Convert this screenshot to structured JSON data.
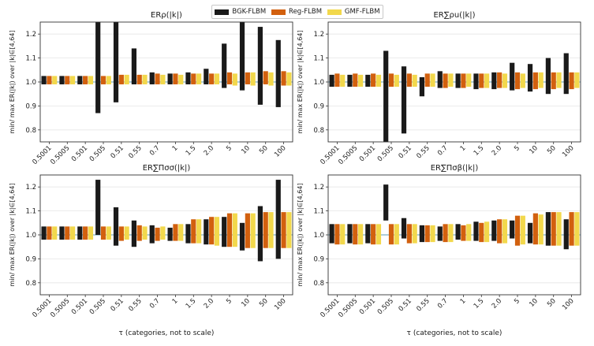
{
  "legend": {
    "bgk": {
      "label": "BGK-FLBM",
      "color": "#1a1a1a"
    },
    "reg": {
      "label": "Reg-FLBM",
      "color": "#d2600e"
    },
    "gmf": {
      "label": "GMF-FLBM",
      "color": "#f2d84c"
    }
  },
  "reference_line_color": "#5b9bb5",
  "chart_data": [
    {
      "type": "bar",
      "title": "ERρ(|k|)",
      "ylabel": "min/ max ER(|k|) over |k|∈[4,64]",
      "xlabel": "τ (categories, not to scale)",
      "categories": [
        "0.5001",
        "0.5005",
        "0.501",
        "0.505",
        "0.51",
        "0.55",
        "0.7",
        "1",
        "1.5",
        "2.0",
        "5",
        "10",
        "50",
        "100"
      ],
      "ylim": [
        0.75,
        1.25
      ],
      "yticks": [
        0.8,
        0.9,
        1.0,
        1.1,
        1.2
      ],
      "reference": 1.0,
      "series": [
        {
          "name": "BGK-FLBM",
          "min": [
            0.99,
            0.99,
            0.99,
            0.87,
            0.915,
            0.99,
            0.99,
            0.99,
            0.99,
            0.99,
            0.975,
            0.965,
            0.905,
            0.895
          ],
          "max": [
            1.025,
            1.025,
            1.025,
            1.25,
            1.25,
            1.14,
            1.04,
            1.035,
            1.04,
            1.055,
            1.16,
            1.25,
            1.23,
            1.175
          ]
        },
        {
          "name": "Reg-FLBM",
          "min": [
            0.99,
            0.99,
            0.99,
            0.99,
            0.99,
            0.99,
            0.99,
            0.99,
            0.99,
            0.99,
            0.99,
            0.99,
            0.99,
            0.985
          ],
          "max": [
            1.025,
            1.025,
            1.025,
            1.025,
            1.03,
            1.03,
            1.035,
            1.035,
            1.035,
            1.035,
            1.04,
            1.04,
            1.045,
            1.045
          ]
        },
        {
          "name": "GMF-FLBM",
          "min": [
            0.99,
            0.99,
            0.99,
            0.99,
            0.99,
            0.99,
            0.99,
            0.99,
            0.99,
            0.99,
            0.985,
            0.985,
            0.985,
            0.985
          ],
          "max": [
            1.025,
            1.025,
            1.025,
            1.025,
            1.03,
            1.03,
            1.03,
            1.03,
            1.035,
            1.035,
            1.035,
            1.04,
            1.04,
            1.04
          ]
        }
      ]
    },
    {
      "type": "bar",
      "title": "ER∑ρu(|k|)",
      "ylabel": "min/ max ER(|k|) over |k|∈[4,64]",
      "xlabel": "τ (categories, not to scale)",
      "categories": [
        "0.5001",
        "0.5005",
        "0.501",
        "0.505",
        "0.51",
        "0.55",
        "0.7",
        "1",
        "1.5",
        "2.0",
        "5",
        "10",
        "50",
        "100"
      ],
      "ylim": [
        0.75,
        1.25
      ],
      "yticks": [
        0.8,
        0.9,
        1.0,
        1.1,
        1.2
      ],
      "reference": 1.0,
      "series": [
        {
          "name": "BGK-FLBM",
          "min": [
            0.98,
            0.98,
            0.98,
            0.75,
            0.785,
            0.94,
            0.975,
            0.975,
            0.97,
            0.97,
            0.965,
            0.96,
            0.95,
            0.95
          ],
          "max": [
            1.03,
            1.03,
            1.03,
            1.13,
            1.065,
            1.02,
            1.045,
            1.035,
            1.035,
            1.04,
            1.08,
            1.075,
            1.1,
            1.12
          ]
        },
        {
          "name": "Reg-FLBM",
          "min": [
            0.98,
            0.98,
            0.98,
            0.98,
            0.98,
            0.98,
            0.975,
            0.975,
            0.975,
            0.975,
            0.97,
            0.97,
            0.97,
            0.97
          ],
          "max": [
            1.035,
            1.035,
            1.035,
            1.035,
            1.035,
            1.035,
            1.035,
            1.035,
            1.035,
            1.04,
            1.04,
            1.04,
            1.04,
            1.04
          ]
        },
        {
          "name": "GMF-FLBM",
          "min": [
            0.98,
            0.98,
            0.98,
            0.98,
            0.98,
            0.98,
            0.98,
            0.98,
            0.975,
            0.975,
            0.975,
            0.975,
            0.975,
            0.975
          ],
          "max": [
            1.03,
            1.03,
            1.03,
            1.03,
            1.03,
            1.035,
            1.035,
            1.035,
            1.035,
            1.035,
            1.035,
            1.04,
            1.04,
            1.04
          ]
        }
      ]
    },
    {
      "type": "bar",
      "title": "ER∑Πσσ(|k|)",
      "ylabel": "min/ max ER(|k|) over |k|∈[4,64]",
      "xlabel": "τ (categories, not to scale)",
      "categories": [
        "0.5001",
        "0.5005",
        "0.501",
        "0.505",
        "0.51",
        "0.55",
        "0.7",
        "1",
        "1.5",
        "2.0",
        "5",
        "10",
        "50",
        "100"
      ],
      "ylim": [
        0.75,
        1.25
      ],
      "yticks": [
        0.8,
        0.9,
        1.0,
        1.1,
        1.2
      ],
      "reference": 1.0,
      "series": [
        {
          "name": "BGK-FLBM",
          "min": [
            0.98,
            0.98,
            0.98,
            1.0,
            0.955,
            0.95,
            0.965,
            0.975,
            0.965,
            0.96,
            0.95,
            0.935,
            0.89,
            0.9
          ],
          "max": [
            1.035,
            1.035,
            1.035,
            1.23,
            1.115,
            1.06,
            1.04,
            1.03,
            1.045,
            1.065,
            1.075,
            1.05,
            1.12,
            1.23
          ]
        },
        {
          "name": "Reg-FLBM",
          "min": [
            0.98,
            0.98,
            0.98,
            0.98,
            0.975,
            0.975,
            0.975,
            0.975,
            0.965,
            0.96,
            0.95,
            0.945,
            0.945,
            0.945
          ],
          "max": [
            1.035,
            1.035,
            1.035,
            1.035,
            1.035,
            1.04,
            1.03,
            1.045,
            1.065,
            1.075,
            1.09,
            1.09,
            1.095,
            1.095
          ]
        },
        {
          "name": "GMF-FLBM",
          "min": [
            0.98,
            0.98,
            0.98,
            0.98,
            0.98,
            0.98,
            0.98,
            0.975,
            0.965,
            0.955,
            0.95,
            0.945,
            0.945,
            0.945
          ],
          "max": [
            1.035,
            1.035,
            1.035,
            1.035,
            1.035,
            1.035,
            1.035,
            1.045,
            1.065,
            1.075,
            1.09,
            1.09,
            1.095,
            1.095
          ]
        }
      ]
    },
    {
      "type": "bar",
      "title": "ER∑Πσβ(|k|)",
      "ylabel": "min/ max ER(|k|) over |k|∈[4,64]",
      "xlabel": "τ (categories, not to scale)",
      "categories": [
        "0.5001",
        "0.5005",
        "0.501",
        "0.505",
        "0.51",
        "0.55",
        "0.7",
        "1",
        "1.5",
        "2.0",
        "5",
        "10",
        "50",
        "100"
      ],
      "ylim": [
        0.75,
        1.25
      ],
      "yticks": [
        0.8,
        0.9,
        1.0,
        1.1,
        1.2
      ],
      "reference": 1.0,
      "series": [
        {
          "name": "BGK-FLBM",
          "min": [
            0.965,
            0.965,
            0.965,
            1.06,
            0.985,
            0.97,
            0.975,
            0.98,
            0.975,
            0.975,
            0.985,
            0.965,
            0.955,
            0.94
          ],
          "max": [
            1.045,
            1.045,
            1.045,
            1.21,
            1.07,
            1.04,
            1.035,
            1.045,
            1.055,
            1.06,
            1.06,
            1.05,
            1.095,
            1.065
          ]
        },
        {
          "name": "Reg-FLBM",
          "min": [
            0.96,
            0.96,
            0.96,
            0.96,
            0.965,
            0.97,
            0.97,
            0.975,
            0.97,
            0.965,
            0.955,
            0.96,
            0.955,
            0.955
          ],
          "max": [
            1.045,
            1.045,
            1.045,
            1.045,
            1.045,
            1.04,
            1.045,
            1.04,
            1.05,
            1.065,
            1.08,
            1.09,
            1.095,
            1.095
          ]
        },
        {
          "name": "GMF-FLBM",
          "min": [
            0.96,
            0.96,
            0.96,
            0.96,
            0.965,
            0.97,
            0.97,
            0.975,
            0.97,
            0.965,
            0.96,
            0.96,
            0.955,
            0.955
          ],
          "max": [
            1.045,
            1.045,
            1.045,
            1.045,
            1.045,
            1.04,
            1.045,
            1.045,
            1.055,
            1.065,
            1.08,
            1.085,
            1.095,
            1.095
          ]
        }
      ]
    }
  ]
}
